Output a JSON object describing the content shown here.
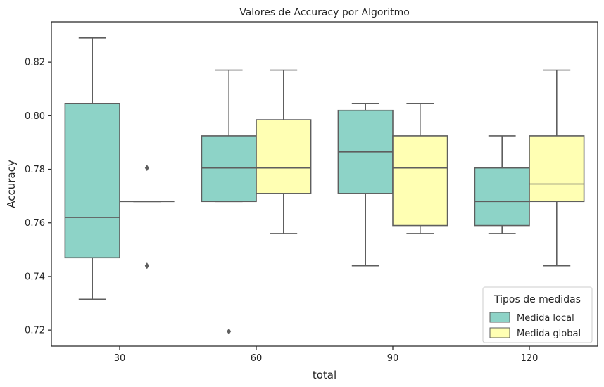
{
  "chart_data": {
    "type": "boxplot",
    "title": "Valores de Accuracy por Algoritmo",
    "xlabel": "total",
    "ylabel": "Accuracy",
    "categories": [
      "30",
      "60",
      "90",
      "120"
    ],
    "ylim": [
      0.714,
      0.835
    ],
    "yticks": [
      0.72,
      0.74,
      0.76,
      0.78,
      0.8,
      0.82
    ],
    "ytick_labels": [
      "0.72",
      "0.74",
      "0.76",
      "0.78",
      "0.80",
      "0.82"
    ],
    "grid": false,
    "legend": {
      "title": "Tipos de medidas",
      "position": "bottom-right"
    },
    "series": [
      {
        "name": "Medida  local",
        "color": "#8dd3c7",
        "boxes": [
          {
            "whislo": 0.7315,
            "q1": 0.747,
            "med": 0.762,
            "q3": 0.8045,
            "whishi": 0.829,
            "fliers": []
          },
          {
            "whislo": 0.768,
            "q1": 0.768,
            "med": 0.7805,
            "q3": 0.7925,
            "whishi": 0.817,
            "fliers": [
              0.7195
            ]
          },
          {
            "whislo": 0.744,
            "q1": 0.771,
            "med": 0.7865,
            "q3": 0.802,
            "whishi": 0.8045,
            "fliers": []
          },
          {
            "whislo": 0.756,
            "q1": 0.759,
            "med": 0.768,
            "q3": 0.7805,
            "whishi": 0.7925,
            "fliers": []
          }
        ]
      },
      {
        "name": "Medida  global",
        "color": "#ffffb3",
        "boxes": [
          {
            "whislo": 0.768,
            "q1": 0.768,
            "med": 0.768,
            "q3": 0.768,
            "whishi": 0.768,
            "fliers": [
              0.7805,
              0.744,
              0.744
            ]
          },
          {
            "whislo": 0.756,
            "q1": 0.771,
            "med": 0.7805,
            "q3": 0.7985,
            "whishi": 0.817,
            "fliers": []
          },
          {
            "whislo": 0.756,
            "q1": 0.759,
            "med": 0.7805,
            "q3": 0.7925,
            "whishi": 0.8045,
            "fliers": []
          },
          {
            "whislo": 0.744,
            "q1": 0.768,
            "med": 0.7745,
            "q3": 0.7925,
            "whishi": 0.817,
            "fliers": []
          }
        ]
      }
    ]
  }
}
